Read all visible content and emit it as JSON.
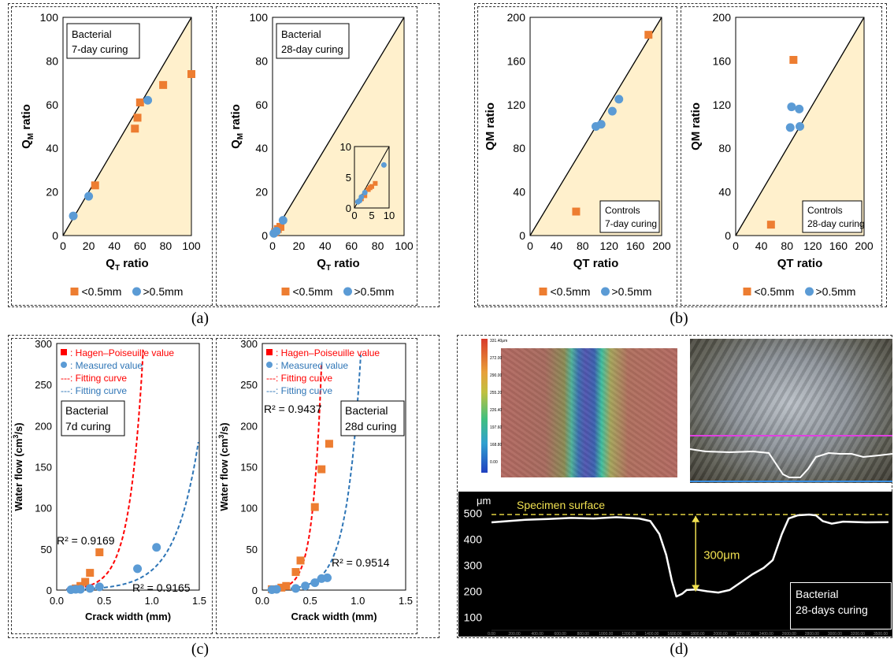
{
  "sublabels": {
    "a": "(a)",
    "b": "(b)",
    "c": "(c)",
    "d": "(d)"
  },
  "legend_ratio": {
    "lt": "<0.5mm",
    "gt": ">0.5mm"
  },
  "legend_flow": {
    "hp": ": Hagen–Poiseuille value",
    "meas": ": Measured value",
    "fit_hp": "---: Fitting curve",
    "fit_meas": "---: Fitting curve"
  },
  "colors": {
    "orange": "#ED7D31",
    "blue": "#5B9BD5",
    "shade": "#FFF0CC",
    "red": "#FF0000",
    "blue_curve": "#2E75B6"
  },
  "chart_data": [
    {
      "id": "a1",
      "type": "scatter",
      "xlabel": "QT ratio",
      "ylabel": "QM ratio",
      "label_sub": "T",
      "label_sub_y": "M",
      "xlim": [
        0,
        100
      ],
      "ylim": [
        0,
        100
      ],
      "ticks": [
        0,
        20,
        40,
        60,
        80,
        100
      ],
      "annotation": [
        "Bacterial",
        "7-day curing"
      ],
      "series": [
        {
          "name": "<0.5mm",
          "points": [
            [
              25,
              23
            ],
            [
              56,
              49
            ],
            [
              58,
              54
            ],
            [
              60,
              61
            ],
            [
              78,
              69
            ],
            [
              100,
              74
            ]
          ]
        },
        {
          "name": ">0.5mm",
          "points": [
            [
              8,
              9
            ],
            [
              20,
              18
            ],
            [
              66,
              62
            ]
          ]
        }
      ]
    },
    {
      "id": "a2",
      "type": "scatter",
      "xlabel": "QT ratio",
      "ylabel": "QM ratio",
      "label_sub": "T",
      "label_sub_y": "M",
      "xlim": [
        0,
        100
      ],
      "ylim": [
        0,
        100
      ],
      "ticks": [
        0,
        20,
        40,
        60,
        80,
        100
      ],
      "annotation": [
        "Bacterial",
        "28-day curing"
      ],
      "series": [
        {
          "name": "<0.5mm",
          "points": [
            [
              2,
              1.5
            ],
            [
              4,
              3
            ],
            [
              6,
              4
            ]
          ]
        },
        {
          "name": ">0.5mm",
          "points": [
            [
              1,
              1
            ],
            [
              3,
              2
            ],
            [
              8,
              7
            ]
          ]
        }
      ],
      "inset": {
        "xlim": [
          0,
          10
        ],
        "ylim": [
          0,
          10
        ],
        "ticks": [
          0,
          5,
          10
        ],
        "series": [
          {
            "name": "<0.5mm",
            "points": [
              [
                2,
                1.5
              ],
              [
                3,
                2
              ],
              [
                4,
                3
              ],
              [
                5,
                3.5
              ],
              [
                6,
                4
              ],
              [
                4.5,
                3.3
              ]
            ]
          },
          {
            "name": ">0.5mm",
            "points": [
              [
                1,
                1
              ],
              [
                1.5,
                1.2
              ],
              [
                2,
                1.8
              ],
              [
                3,
                2.5
              ],
              [
                8.5,
                7
              ]
            ]
          }
        ]
      }
    },
    {
      "id": "b1",
      "type": "scatter",
      "xlabel": "QT ratio",
      "ylabel": "QM ratio",
      "xlim": [
        0,
        200
      ],
      "ylim": [
        0,
        200
      ],
      "ticks": [
        0,
        40,
        80,
        120,
        160,
        200
      ],
      "annotation": [
        "Controls",
        "7-day curing"
      ],
      "series": [
        {
          "name": "<0.5mm",
          "points": [
            [
              70,
              22
            ],
            [
              180,
              184
            ]
          ]
        },
        {
          "name": ">0.5mm",
          "points": [
            [
              100,
              100
            ],
            [
              108,
              102
            ],
            [
              125,
              114
            ],
            [
              135,
              125
            ]
          ]
        }
      ]
    },
    {
      "id": "b2",
      "type": "scatter",
      "xlabel": "QT ratio",
      "ylabel": "QM ratio",
      "xlim": [
        0,
        200
      ],
      "ylim": [
        0,
        200
      ],
      "ticks": [
        0,
        40,
        80,
        120,
        160,
        200
      ],
      "annotation": [
        "Controls",
        "28-day curing"
      ],
      "series": [
        {
          "name": "<0.5mm",
          "points": [
            [
              55,
              10
            ],
            [
              90,
              161
            ]
          ]
        },
        {
          "name": ">0.5mm",
          "points": [
            [
              85,
              99
            ],
            [
              87,
              118
            ],
            [
              99,
              116
            ],
            [
              100,
              100
            ]
          ]
        }
      ]
    },
    {
      "id": "c1",
      "type": "scatter",
      "xlabel": "Crack width (mm)",
      "ylabel": "Water flow (cm3/s)",
      "xlim": [
        0,
        1.5
      ],
      "ylim": [
        0,
        300
      ],
      "xticks": [
        "0.0",
        "0.5",
        "1.0",
        "1.5"
      ],
      "yticks": [
        0,
        50,
        100,
        150,
        200,
        250,
        300
      ],
      "annotation": [
        "Bacterial",
        "7d curing"
      ],
      "r2": [
        "R² = 0.9169",
        "R² = 0.9165"
      ],
      "series": [
        {
          "name": "Hagen–Poiseuille value",
          "points": [
            [
              0.2,
              2
            ],
            [
              0.25,
              5
            ],
            [
              0.3,
              10
            ],
            [
              0.35,
              21
            ],
            [
              0.45,
              46
            ]
          ]
        },
        {
          "name": "Measured value",
          "points": [
            [
              0.15,
              0.5
            ],
            [
              0.2,
              1
            ],
            [
              0.25,
              1
            ],
            [
              0.35,
              2
            ],
            [
              0.45,
              4
            ],
            [
              0.85,
              26
            ],
            [
              1.05,
              52
            ]
          ]
        }
      ],
      "fits": [
        {
          "a": 0.5,
          "b": 7.0
        },
        {
          "a": 0.4,
          "b": 4.1
        }
      ]
    },
    {
      "id": "c2",
      "type": "scatter",
      "xlabel": "Crack width (mm)",
      "ylabel": "Water flow (cm3/s)",
      "xlim": [
        0,
        1.5
      ],
      "ylim": [
        0,
        300
      ],
      "xticks": [
        "0.0",
        "0.5",
        "1.0",
        "1.5"
      ],
      "yticks": [
        0,
        50,
        100,
        150,
        200,
        250,
        300
      ],
      "annotation": [
        "Bacterial",
        "28d curing"
      ],
      "r2": [
        "R² = 0.9437",
        "R² = 0.9514"
      ],
      "series": [
        {
          "name": "Hagen–Poiseuille value",
          "points": [
            [
              0.1,
              1
            ],
            [
              0.2,
              3
            ],
            [
              0.25,
              5
            ],
            [
              0.35,
              22
            ],
            [
              0.4,
              36
            ],
            [
              0.55,
              101
            ],
            [
              0.62,
              147
            ],
            [
              0.7,
              178
            ]
          ]
        },
        {
          "name": "Measured value",
          "points": [
            [
              0.1,
              0.5
            ],
            [
              0.15,
              1
            ],
            [
              0.35,
              2
            ],
            [
              0.45,
              5
            ],
            [
              0.55,
              9
            ],
            [
              0.62,
              14
            ],
            [
              0.68,
              15
            ]
          ]
        }
      ],
      "fits": [
        {
          "a": 0.3,
          "b": 11.0
        },
        {
          "a": 0.26,
          "b": 6.8
        }
      ]
    },
    {
      "id": "d",
      "type": "line",
      "ylabel": "μm",
      "ylim": [
        50,
        550
      ],
      "yticks": [
        100,
        200,
        300,
        400,
        500
      ],
      "xlim": [
        0,
        3500
      ],
      "xticks": [
        "0.00",
        "200.00",
        "400.00",
        "600.00",
        "800.00",
        "1000.00",
        "1200.00",
        "1400.00",
        "1600.00",
        "1800.00",
        "2000.00",
        "2200.00",
        "2400.00",
        "2600.00",
        "2800.00",
        "3000.00",
        "3200.00",
        "3500.00"
      ],
      "surface_label": "Specimen surface",
      "depth_label": "300μm",
      "annotation": [
        "Bacterial",
        "28-days curing"
      ],
      "colorbar_ticks": [
        "331.40μm",
        "272.00",
        "290.00",
        "255.20",
        "226.40",
        "197.60",
        "168.80",
        "0.00"
      ],
      "profile": [
        [
          0,
          465
        ],
        [
          150,
          470
        ],
        [
          300,
          475
        ],
        [
          500,
          478
        ],
        [
          700,
          482
        ],
        [
          900,
          480
        ],
        [
          1100,
          485
        ],
        [
          1300,
          480
        ],
        [
          1400,
          470
        ],
        [
          1480,
          420
        ],
        [
          1540,
          340
        ],
        [
          1590,
          240
        ],
        [
          1630,
          180
        ],
        [
          1680,
          190
        ],
        [
          1720,
          205
        ],
        [
          1800,
          207
        ],
        [
          1900,
          200
        ],
        [
          2000,
          195
        ],
        [
          2100,
          205
        ],
        [
          2200,
          235
        ],
        [
          2300,
          265
        ],
        [
          2400,
          290
        ],
        [
          2480,
          320
        ],
        [
          2560,
          420
        ],
        [
          2620,
          480
        ],
        [
          2700,
          492
        ],
        [
          2800,
          495
        ],
        [
          2860,
          492
        ],
        [
          2920,
          470
        ],
        [
          3000,
          460
        ],
        [
          3100,
          468
        ],
        [
          3300,
          465
        ],
        [
          3500,
          466
        ]
      ]
    }
  ]
}
